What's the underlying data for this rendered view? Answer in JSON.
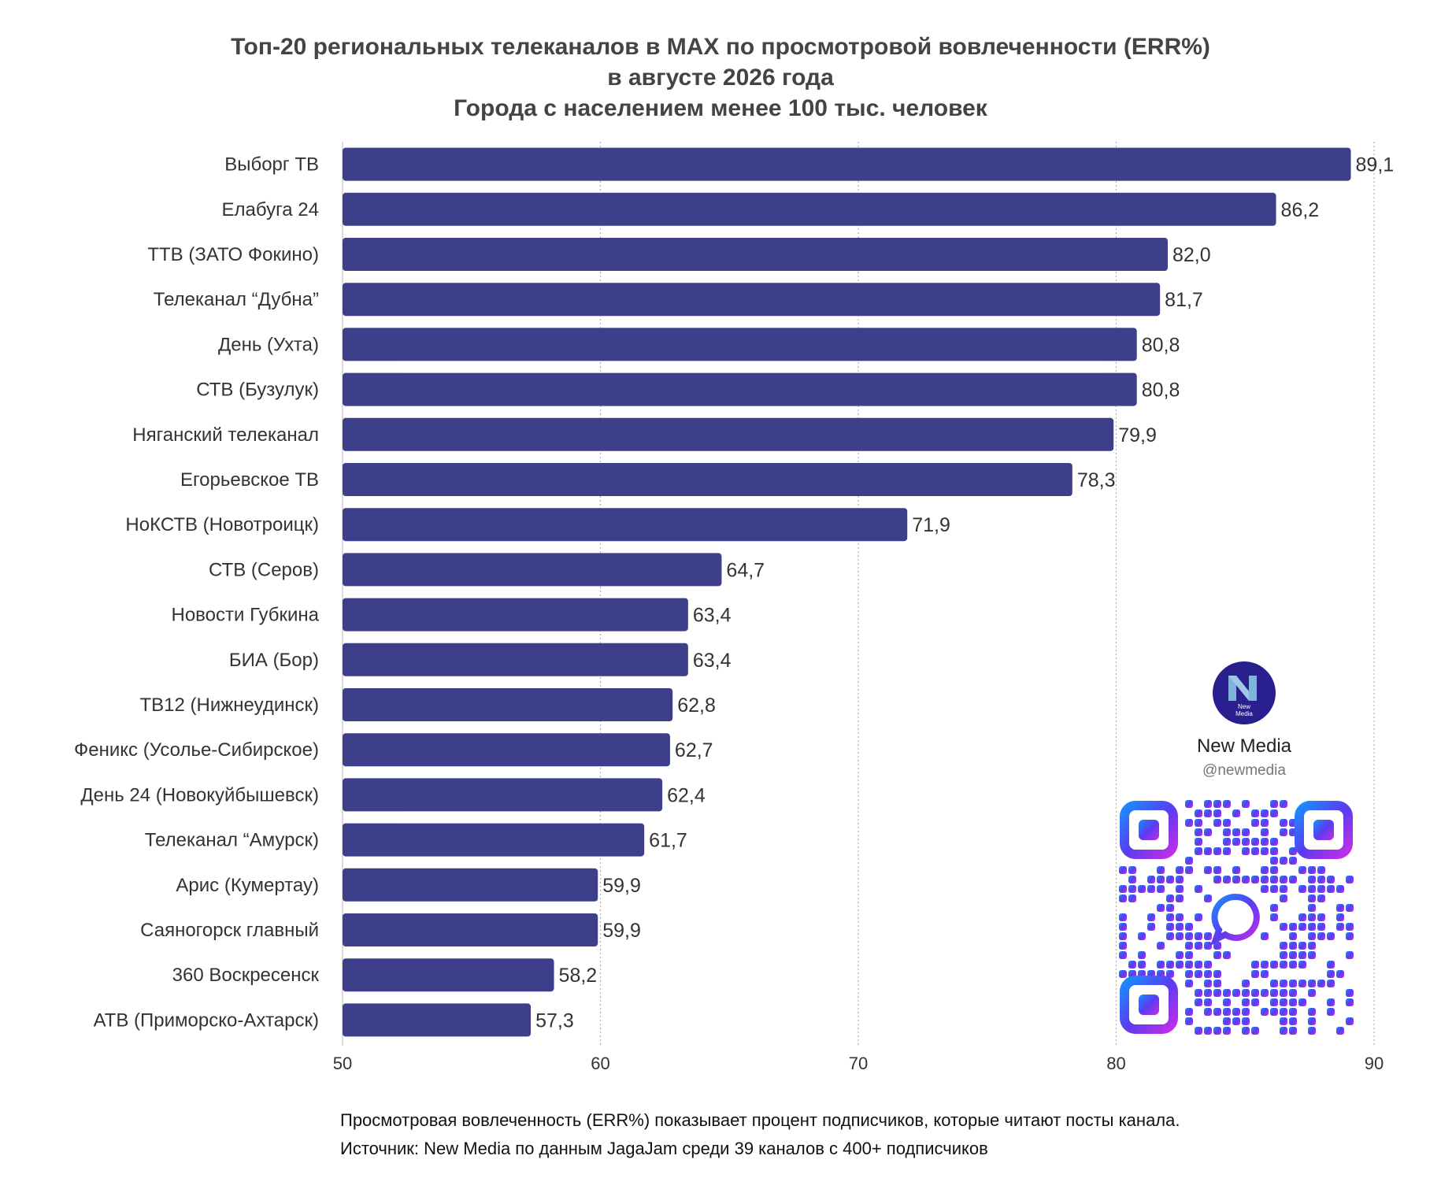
{
  "title": {
    "line1": "Топ-20 региональных телеканалов в MAX по просмотровой вовлеченности (ERR%)",
    "line2": "в августе 2026 года",
    "line3": "Города с населением менее 100 тыс. человек"
  },
  "chart_data": {
    "type": "bar",
    "orientation": "horizontal",
    "categories": [
      "Выборг ТВ",
      "Елабуга 24",
      "ТТВ (ЗАТО Фокино)",
      "Телеканал “Дубна”",
      "День (Ухта)",
      "СТВ (Бузулук)",
      "Няганский телеканал",
      "Егорьевское ТВ",
      "НоКСТВ (Новотроицк)",
      "СТВ (Серов)",
      "Новости Губкина",
      "БИА (Бор)",
      "ТВ12 (Нижнеудинск)",
      "Феникс (Усолье-Сибирское)",
      "День 24 (Новокуйбышевск)",
      "Телеканал “Амурск)",
      "Арис (Кумертау)",
      "Саяногорск главный",
      "360 Воскресенск",
      "АТВ (Приморско-Ахтарск)"
    ],
    "values": [
      89.1,
      86.2,
      82.0,
      81.7,
      80.8,
      80.8,
      79.9,
      78.3,
      71.9,
      64.7,
      63.4,
      63.4,
      62.8,
      62.7,
      62.4,
      61.7,
      59.9,
      59.9,
      58.2,
      57.3
    ],
    "value_labels": [
      "89,1",
      "86,2",
      "82,0",
      "81,7",
      "80,8",
      "80,8",
      "79,9",
      "78,3",
      "71,9",
      "64,7",
      "63,4",
      "63,4",
      "62,8",
      "62,7",
      "62,4",
      "61,7",
      "59,9",
      "59,9",
      "58,2",
      "57,3"
    ],
    "xlim": [
      50,
      90
    ],
    "xticks": [
      50,
      60,
      70,
      80,
      90
    ],
    "grid": "vertical dotted",
    "bar_color": "#3d3f8a"
  },
  "footnote": {
    "line1": "Просмотровая вовлеченность (ERR%) показывает процент подписчиков, которые читают посты канала.",
    "line2": "Источник: New Media по данным JagaJam среди 39 каналов с 400+ подписчиков"
  },
  "brand": {
    "logo_text": "New Media",
    "name": "New Media",
    "handle": "@newmedia",
    "icon": "new-media-logo-icon"
  },
  "qr": {
    "icon": "qr-code-icon"
  }
}
